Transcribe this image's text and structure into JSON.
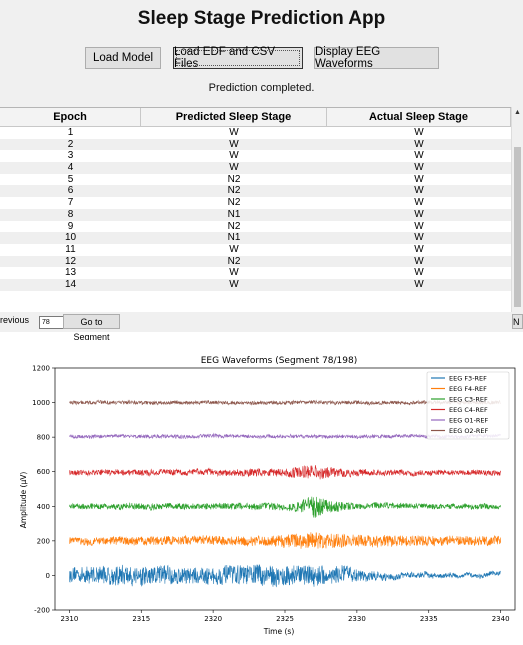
{
  "app": {
    "title": "Sleep Stage Prediction App",
    "buttons": {
      "load_model": "Load Model",
      "load_files": "Load EDF and CSV Files",
      "display_eeg": "Display EEG Waveforms"
    },
    "status": "Prediction completed."
  },
  "table": {
    "headers": [
      "Epoch",
      "Predicted Sleep Stage",
      "Actual Sleep Stage"
    ],
    "rows": [
      [
        "1",
        "W",
        "W"
      ],
      [
        "2",
        "W",
        "W"
      ],
      [
        "3",
        "W",
        "W"
      ],
      [
        "4",
        "W",
        "W"
      ],
      [
        "5",
        "N2",
        "W"
      ],
      [
        "6",
        "N2",
        "W"
      ],
      [
        "7",
        "N2",
        "W"
      ],
      [
        "8",
        "N1",
        "W"
      ],
      [
        "9",
        "N2",
        "W"
      ],
      [
        "10",
        "N1",
        "W"
      ],
      [
        "11",
        "W",
        "W"
      ],
      [
        "12",
        "N2",
        "W"
      ],
      [
        "13",
        "W",
        "W"
      ],
      [
        "14",
        "W",
        "W"
      ]
    ]
  },
  "navigation": {
    "previous_label": "revious",
    "segment_value": "78",
    "goto_label": "Go to Segment",
    "next_label": "N"
  },
  "chart_data": {
    "type": "line",
    "title": "EEG Waveforms (Segment 78/198)",
    "xlabel": "Time (s)",
    "ylabel": "Amplitude (µV)",
    "xlim": [
      2309,
      2341
    ],
    "ylim": [
      -200,
      1200
    ],
    "xticks": [
      2310,
      2315,
      2320,
      2325,
      2330,
      2335,
      2340
    ],
    "yticks": [
      -200,
      0,
      200,
      400,
      600,
      800,
      1000,
      1200
    ],
    "legend_position": "top-right",
    "series": [
      {
        "name": "EEG F3-REF",
        "color": "#1f77b4",
        "offset": 0,
        "noise": 28,
        "x": [
          2310,
          2312,
          2314,
          2316,
          2318,
          2320,
          2322,
          2324,
          2325,
          2326,
          2327,
          2328,
          2329,
          2330,
          2332,
          2334,
          2336,
          2338,
          2340
        ],
        "envelope": [
          40,
          50,
          60,
          60,
          45,
          50,
          55,
          60,
          60,
          50,
          70,
          45,
          55,
          35,
          20,
          15,
          15,
          12,
          12
        ]
      },
      {
        "name": "EEG F4-REF",
        "color": "#ff7f0e",
        "offset": 200,
        "noise": 15,
        "x": [
          2310,
          2315,
          2320,
          2324,
          2325,
          2327,
          2330,
          2335,
          2340
        ],
        "envelope": [
          20,
          25,
          25,
          30,
          40,
          50,
          35,
          30,
          25
        ]
      },
      {
        "name": "EEG C3-REF",
        "color": "#2ca02c",
        "offset": 400,
        "noise": 12,
        "x": [
          2310,
          2315,
          2320,
          2325,
          2326,
          2327,
          2328,
          2330,
          2335,
          2340
        ],
        "envelope": [
          15,
          18,
          18,
          20,
          30,
          70,
          35,
          18,
          15,
          15
        ]
      },
      {
        "name": "EEG C4-REF",
        "color": "#d62728",
        "offset": 595,
        "noise": 12,
        "x": [
          2310,
          2315,
          2320,
          2325,
          2326,
          2327,
          2328,
          2330,
          2335,
          2340
        ],
        "envelope": [
          15,
          18,
          18,
          25,
          35,
          45,
          30,
          18,
          15,
          15
        ]
      },
      {
        "name": "EEG O1-REF",
        "color": "#9467bd",
        "offset": 805,
        "noise": 8,
        "x": [
          2310,
          2320,
          2330,
          2340
        ],
        "envelope": [
          10,
          10,
          10,
          10
        ]
      },
      {
        "name": "EEG O2-REF",
        "color": "#8c564b",
        "offset": 1000,
        "noise": 8,
        "x": [
          2310,
          2320,
          2330,
          2340
        ],
        "envelope": [
          10,
          10,
          10,
          10
        ]
      }
    ]
  }
}
